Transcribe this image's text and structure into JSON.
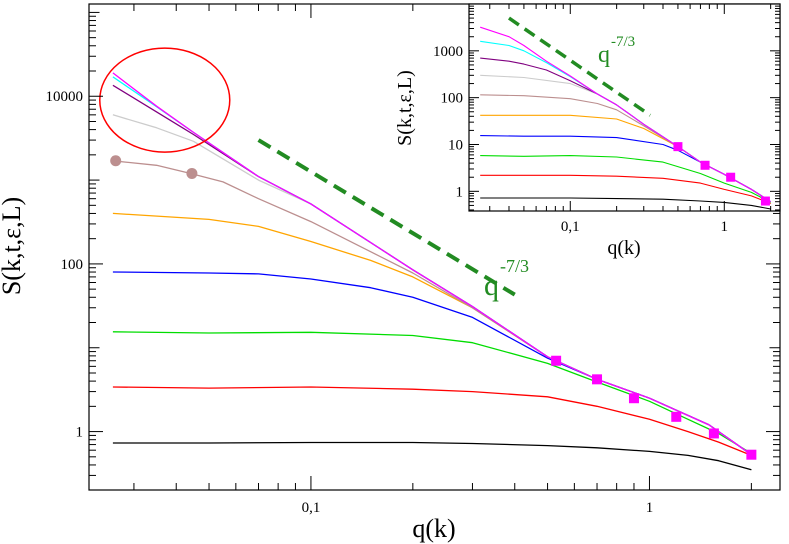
{
  "chart_data": [
    {
      "type": "line",
      "name": "main-plot",
      "xscale": "log",
      "yscale": "log",
      "xlim": [
        0.0221,
        2.43
      ],
      "ylim": [
        0.201,
        126000
      ],
      "xlabel": "q(k)",
      "ylabel": "S(k,t,ε,L)",
      "xticks": [
        0.1,
        1
      ],
      "xtick_labels": [
        "0,1",
        "1"
      ],
      "yticks": [
        1,
        100,
        10000
      ],
      "ytick_labels": [
        "1",
        "100",
        "10000"
      ],
      "annotation": {
        "base": "q",
        "exponent": "-7/3",
        "color": "#228B22"
      },
      "guide_line": {
        "x": [
          0.07,
          0.4
        ],
        "y": [
          3000,
          43
        ],
        "color": "#228B22",
        "style": "dashed"
      },
      "ellipse_highlight": {
        "x_center": 0.037,
        "y_center": 9000,
        "color": "#ff0000"
      },
      "series": [
        {
          "name": "black",
          "color": "#000000",
          "x": [
            0.026,
            0.05,
            0.1,
            0.2,
            0.3,
            0.5,
            0.7,
            1.0,
            1.3,
            1.6,
            2.0
          ],
          "y": [
            0.73,
            0.73,
            0.74,
            0.74,
            0.72,
            0.68,
            0.64,
            0.58,
            0.52,
            0.45,
            0.35
          ]
        },
        {
          "name": "red",
          "color": "#ff0000",
          "x": [
            0.026,
            0.05,
            0.1,
            0.2,
            0.3,
            0.5,
            0.7,
            1.0,
            1.3,
            1.6,
            2.0
          ],
          "y": [
            3.4,
            3.3,
            3.4,
            3.2,
            3.0,
            2.6,
            2.0,
            1.4,
            1.0,
            0.75,
            0.52
          ]
        },
        {
          "name": "green",
          "color": "#00dd00",
          "x": [
            0.026,
            0.05,
            0.1,
            0.2,
            0.3,
            0.5,
            0.7,
            1.0,
            1.3,
            1.6,
            2.0
          ],
          "y": [
            15.5,
            15.0,
            15.3,
            14.0,
            11.5,
            6.5,
            3.9,
            2.3,
            1.4,
            0.95,
            0.55
          ]
        },
        {
          "name": "blue",
          "color": "#0000ff",
          "x": [
            0.026,
            0.05,
            0.07,
            0.1,
            0.15,
            0.2,
            0.3,
            0.5,
            0.7,
            1.0,
            1.5,
            2.0
          ],
          "y": [
            80,
            78,
            76,
            66,
            52,
            40,
            23,
            7.5,
            4.2,
            2.5,
            1.2,
            0.53
          ]
        },
        {
          "name": "orange",
          "color": "#ffa500",
          "x": [
            0.026,
            0.05,
            0.07,
            0.1,
            0.15,
            0.2,
            0.3,
            0.5,
            0.7,
            1.0,
            1.5,
            2.0
          ],
          "y": [
            400,
            340,
            280,
            185,
            110,
            70,
            30,
            7.8,
            4.2,
            2.5,
            1.2,
            0.53
          ]
        },
        {
          "name": "rosybrown",
          "color": "#bc8f8f",
          "x": [
            0.026,
            0.035,
            0.044,
            0.055,
            0.07,
            0.1,
            0.15,
            0.2,
            0.3,
            0.5,
            0.7,
            1.0,
            1.5,
            2.0
          ],
          "y": [
            1700,
            1500,
            1200,
            950,
            600,
            320,
            140,
            78,
            30,
            7.8,
            4.2,
            2.5,
            1.2,
            0.53
          ]
        },
        {
          "name": "lightgray",
          "color": "#cccccc",
          "x": [
            0.026,
            0.035,
            0.045,
            0.07,
            0.1,
            0.2,
            0.3,
            0.5,
            0.7,
            1.0,
            1.5,
            2.0
          ],
          "y": [
            6000,
            4200,
            2900,
            1000,
            520,
            85,
            31,
            7.8,
            4.2,
            2.5,
            1.2,
            0.53
          ]
        },
        {
          "name": "purple",
          "color": "#800080",
          "x": [
            0.026,
            0.035,
            0.045,
            0.07,
            0.1,
            0.2,
            0.3,
            0.5,
            0.7,
            1.0,
            1.5,
            2.0
          ],
          "y": [
            13500,
            6500,
            3500,
            1100,
            520,
            85,
            31,
            7.8,
            4.2,
            2.5,
            1.2,
            0.53
          ]
        },
        {
          "name": "cyan",
          "color": "#00ffff",
          "x": [
            0.026,
            0.035,
            0.045,
            0.07,
            0.1,
            0.2,
            0.3,
            0.5,
            0.7,
            1.0,
            1.5,
            2.0
          ],
          "y": [
            17000,
            7500,
            3700,
            1100,
            520,
            85,
            31,
            7.8,
            4.2,
            2.5,
            1.2,
            0.53
          ]
        },
        {
          "name": "magenta",
          "color": "#ff00ff",
          "x": [
            0.026,
            0.035,
            0.045,
            0.07,
            0.1,
            0.2,
            0.3,
            0.5,
            0.7,
            1.0,
            1.5,
            2.0
          ],
          "y": [
            19000,
            7600,
            3700,
            1100,
            520,
            85,
            31,
            7.8,
            4.2,
            2.5,
            1.2,
            0.53
          ]
        }
      ],
      "markers": [
        {
          "name": "rosybrown-dots",
          "color": "#bc8f8f",
          "shape": "circle",
          "x": [
            0.0265,
            0.0445
          ],
          "y": [
            1700,
            1200
          ]
        },
        {
          "name": "magenta-squares",
          "color": "#ff00ff",
          "shape": "square",
          "x": [
            0.53,
            0.7,
            0.9,
            1.2,
            1.55,
            2.0
          ],
          "y": [
            7.0,
            4.2,
            2.5,
            1.5,
            0.95,
            0.53
          ]
        }
      ]
    },
    {
      "type": "line",
      "name": "inset-plot",
      "xscale": "log",
      "yscale": "log",
      "xlim": [
        0.022,
        2.3
      ],
      "ylim": [
        0.38,
        10000
      ],
      "xlabel": "q(k)",
      "ylabel": "S(k,t,ε,L)",
      "xticks": [
        0.1,
        1
      ],
      "xtick_labels": [
        "0,1",
        "1"
      ],
      "yticks": [
        1,
        10,
        100,
        1000
      ],
      "ytick_labels": [
        "1",
        "10",
        "100",
        "1000"
      ],
      "annotation": {
        "base": "q",
        "exponent": "-7/3",
        "color": "#228B22"
      },
      "guide_line": {
        "x": [
          0.04,
          0.33
        ],
        "y": [
          5000,
          42
        ],
        "color": "#228B22",
        "style": "dashed"
      },
      "series": [
        {
          "name": "black",
          "color": "#000000",
          "x": [
            0.026,
            0.05,
            0.1,
            0.2,
            0.4,
            0.7,
            1.0,
            1.5,
            2.0
          ],
          "y": [
            0.72,
            0.72,
            0.72,
            0.7,
            0.68,
            0.62,
            0.58,
            0.5,
            0.42
          ]
        },
        {
          "name": "red",
          "color": "#ff0000",
          "x": [
            0.026,
            0.05,
            0.1,
            0.2,
            0.4,
            0.7,
            1.0,
            1.5,
            2.0
          ],
          "y": [
            2.2,
            2.2,
            2.2,
            2.1,
            1.9,
            1.5,
            1.1,
            0.8,
            0.55
          ]
        },
        {
          "name": "green",
          "color": "#00dd00",
          "x": [
            0.026,
            0.05,
            0.1,
            0.2,
            0.4,
            0.7,
            1.0,
            1.5,
            2.0
          ],
          "y": [
            5.8,
            5.6,
            5.8,
            5.4,
            4.2,
            2.4,
            1.5,
            0.95,
            0.58
          ]
        },
        {
          "name": "blue",
          "color": "#0000ff",
          "x": [
            0.026,
            0.05,
            0.1,
            0.2,
            0.4,
            0.5,
            0.7,
            1.0,
            1.5,
            2.0
          ],
          "y": [
            15.5,
            15.0,
            15.0,
            14.0,
            10.0,
            7.5,
            4.2,
            2.3,
            1.1,
            0.6
          ]
        },
        {
          "name": "orange",
          "color": "#ffa500",
          "x": [
            0.026,
            0.05,
            0.1,
            0.2,
            0.3,
            0.5,
            0.7,
            1.0,
            1.5,
            2.0
          ],
          "y": [
            42,
            42,
            42,
            35,
            22,
            9.0,
            4.2,
            2.3,
            1.1,
            0.6
          ]
        },
        {
          "name": "rosybrown",
          "color": "#bc8f8f",
          "x": [
            0.026,
            0.05,
            0.1,
            0.15,
            0.2,
            0.3,
            0.5,
            0.7,
            1.0,
            1.5,
            2.0
          ],
          "y": [
            115,
            110,
            95,
            75,
            55,
            25,
            9.0,
            4.2,
            2.3,
            1.1,
            0.6
          ]
        },
        {
          "name": "lightgray",
          "color": "#cccccc",
          "x": [
            0.026,
            0.05,
            0.1,
            0.15,
            0.2,
            0.3,
            0.5,
            0.7,
            1.0,
            1.5,
            2.0
          ],
          "y": [
            300,
            270,
            200,
            120,
            70,
            27,
            9.0,
            4.2,
            2.3,
            1.1,
            0.6
          ]
        },
        {
          "name": "purple",
          "color": "#800080",
          "x": [
            0.026,
            0.04,
            0.05,
            0.07,
            0.1,
            0.15,
            0.2,
            0.3,
            0.5,
            0.7,
            1.0,
            1.5,
            2.0
          ],
          "y": [
            700,
            600,
            520,
            390,
            230,
            120,
            70,
            27,
            9.0,
            4.2,
            2.3,
            1.1,
            0.6
          ]
        },
        {
          "name": "cyan",
          "color": "#00ffff",
          "x": [
            0.026,
            0.04,
            0.05,
            0.07,
            0.1,
            0.15,
            0.2,
            0.3,
            0.5,
            0.7,
            1.0,
            1.5,
            2.0
          ],
          "y": [
            1600,
            1300,
            1000,
            560,
            280,
            120,
            70,
            27,
            9.0,
            4.2,
            2.3,
            1.1,
            0.6
          ]
        },
        {
          "name": "magenta",
          "color": "#ff00ff",
          "x": [
            0.026,
            0.04,
            0.05,
            0.07,
            0.1,
            0.15,
            0.2,
            0.3,
            0.5,
            0.7,
            1.0,
            1.5,
            2.0
          ],
          "y": [
            3200,
            2000,
            1300,
            600,
            290,
            120,
            70,
            27,
            9.0,
            4.2,
            2.3,
            1.1,
            0.6
          ]
        }
      ],
      "markers": [
        {
          "name": "magenta-squares",
          "color": "#ff00ff",
          "shape": "square",
          "x": [
            0.5,
            0.75,
            1.1,
            1.85
          ],
          "y": [
            9.0,
            3.6,
            2.0,
            0.62
          ]
        }
      ]
    }
  ]
}
